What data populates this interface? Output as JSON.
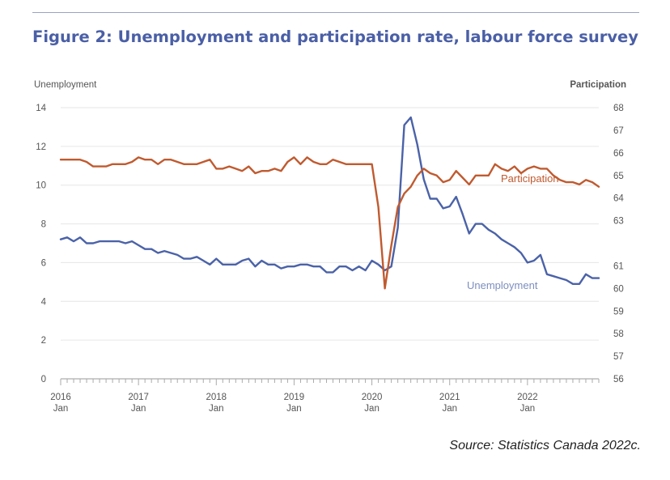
{
  "figure": {
    "title": "Figure 2: Unemployment and participation rate, labour force survey",
    "source": "Source: Statistics Canada 2022c."
  },
  "chart_data": {
    "type": "line",
    "title": "Figure 2: Unemployment and participation rate, labour force survey",
    "xlabel": "",
    "y_left_label": "Unemployment",
    "y_right_label": "Participation",
    "y_left_lim": [
      0,
      14
    ],
    "y_right_lim": [
      56,
      68
    ],
    "y_left_ticks": [
      "0",
      "2",
      "4",
      "6",
      "8",
      "10",
      "12",
      "14"
    ],
    "y_right_ticks": [
      "56",
      "57",
      "58",
      "59",
      "60",
      "61",
      "63",
      "64",
      "65",
      "66",
      "67",
      "68"
    ],
    "x_ticks": [
      {
        "year": "2016",
        "month": "Jan",
        "index": 0
      },
      {
        "year": "2017",
        "month": "Jan",
        "index": 12
      },
      {
        "year": "2018",
        "month": "Jan",
        "index": 24
      },
      {
        "year": "2019",
        "month": "Jan",
        "index": 36
      },
      {
        "year": "2020",
        "month": "Jan",
        "index": 48
      },
      {
        "year": "2021",
        "month": "Jan",
        "index": 60
      },
      {
        "year": "2022",
        "month": "Jan",
        "index": 72
      }
    ],
    "x_start": "2016-01",
    "x_end": "2022-12",
    "grid": true,
    "series": [
      {
        "name": "Unemployment",
        "axis": "left",
        "color": "#4a62a8",
        "label_color": "#7d8fc0",
        "values": [
          7.2,
          7.3,
          7.1,
          7.3,
          7.0,
          7.0,
          7.1,
          7.1,
          7.1,
          7.1,
          7.0,
          7.1,
          6.9,
          6.7,
          6.7,
          6.5,
          6.6,
          6.5,
          6.4,
          6.2,
          6.2,
          6.3,
          6.1,
          5.9,
          6.2,
          5.9,
          5.9,
          5.9,
          6.1,
          6.2,
          5.8,
          6.1,
          5.9,
          5.9,
          5.7,
          5.8,
          5.8,
          5.9,
          5.9,
          5.8,
          5.8,
          5.5,
          5.5,
          5.8,
          5.8,
          5.6,
          5.8,
          5.6,
          6.1,
          5.9,
          5.6,
          5.8,
          7.8,
          13.1,
          13.5,
          12.1,
          10.3,
          9.3,
          9.3,
          8.8,
          8.9,
          9.4,
          8.5,
          7.5,
          8.0,
          8.0,
          7.7,
          7.5,
          7.2,
          7.0,
          6.8,
          6.5,
          6.0,
          6.1,
          6.4,
          5.4,
          5.3,
          5.2,
          5.1,
          4.9,
          4.9,
          5.4,
          5.2,
          5.2
        ]
      },
      {
        "name": "Participation",
        "axis": "right",
        "color": "#c05a2f",
        "label_color": "#c05a2f",
        "values": [
          65.7,
          65.7,
          65.7,
          65.7,
          65.6,
          65.4,
          65.4,
          65.4,
          65.5,
          65.5,
          65.5,
          65.6,
          65.8,
          65.7,
          65.7,
          65.5,
          65.7,
          65.7,
          65.6,
          65.5,
          65.5,
          65.5,
          65.6,
          65.7,
          65.3,
          65.3,
          65.4,
          65.3,
          65.2,
          65.4,
          65.1,
          65.2,
          65.2,
          65.3,
          65.2,
          65.6,
          65.8,
          65.5,
          65.8,
          65.6,
          65.5,
          65.5,
          65.7,
          65.6,
          65.5,
          65.5,
          65.5,
          65.5,
          65.5,
          63.6,
          60.0,
          61.9,
          63.6,
          64.2,
          64.5,
          65.0,
          65.3,
          65.1,
          65.0,
          64.7,
          64.8,
          65.2,
          64.9,
          64.6,
          65.0,
          65.0,
          65.0,
          65.5,
          65.3,
          65.2,
          65.4,
          65.1,
          65.3,
          65.4,
          65.3,
          65.3,
          65.0,
          64.8,
          64.7,
          64.7,
          64.6,
          64.8,
          64.7,
          64.5
        ]
      }
    ]
  }
}
